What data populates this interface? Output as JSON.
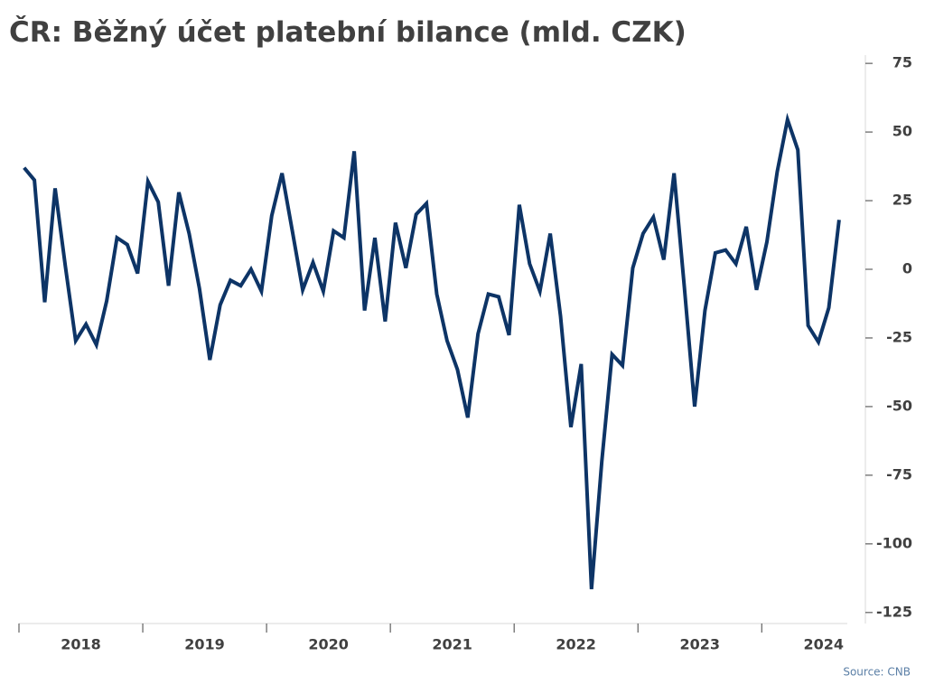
{
  "chart_data": {
    "type": "line",
    "title": "ČR: Běžný účet platební bilance (mld. CZK)",
    "source": "Source: CNB",
    "categories": [
      "2018",
      null,
      null,
      null,
      null,
      null,
      null,
      null,
      null,
      null,
      null,
      null,
      "2019",
      null,
      null,
      null,
      null,
      null,
      null,
      null,
      null,
      null,
      null,
      null,
      "2020",
      null,
      null,
      null,
      null,
      null,
      null,
      null,
      null,
      null,
      null,
      null,
      "2021",
      null,
      null,
      null,
      null,
      null,
      null,
      null,
      null,
      null,
      null,
      null,
      "2022",
      null,
      null,
      null,
      null,
      null,
      null,
      null,
      null,
      null,
      null,
      null,
      "2023",
      null,
      null,
      null,
      null,
      null,
      null,
      null,
      null,
      null,
      null,
      null,
      "2024",
      null,
      null,
      null,
      null,
      null,
      null,
      null
    ],
    "values": [
      37,
      32.5,
      -12,
      29.5,
      1,
      -26,
      -20,
      -27.5,
      -11.5,
      11.5,
      9,
      -1.5,
      32,
      24.5,
      -6,
      28,
      13,
      -7,
      -33,
      -13,
      -4,
      -6,
      0,
      -8,
      19.5,
      35,
      14,
      -7.5,
      2.5,
      -8,
      14,
      11.5,
      43,
      -15,
      11.5,
      -19,
      17,
      0.5,
      20,
      24,
      -9,
      -26,
      -36.5,
      -54,
      -23.5,
      -9,
      -10,
      -24,
      23.5,
      2,
      -8,
      13,
      -17,
      -57.5,
      -34.5,
      -116.5,
      -70,
      -31,
      -35,
      0.5,
      13,
      19,
      3.5,
      35,
      -6.5,
      -50,
      -15,
      6,
      7,
      2,
      15.5,
      -7.5,
      10,
      35.5,
      54.5,
      43.5,
      -20.5,
      -26.5,
      -14,
      18
    ],
    "color": "#0d3466",
    "ylim": [
      -129,
      78
    ],
    "yticks": [
      -125,
      -100,
      -75,
      -50,
      -25,
      0,
      25,
      50,
      75
    ],
    "y_axis_side": "right"
  }
}
